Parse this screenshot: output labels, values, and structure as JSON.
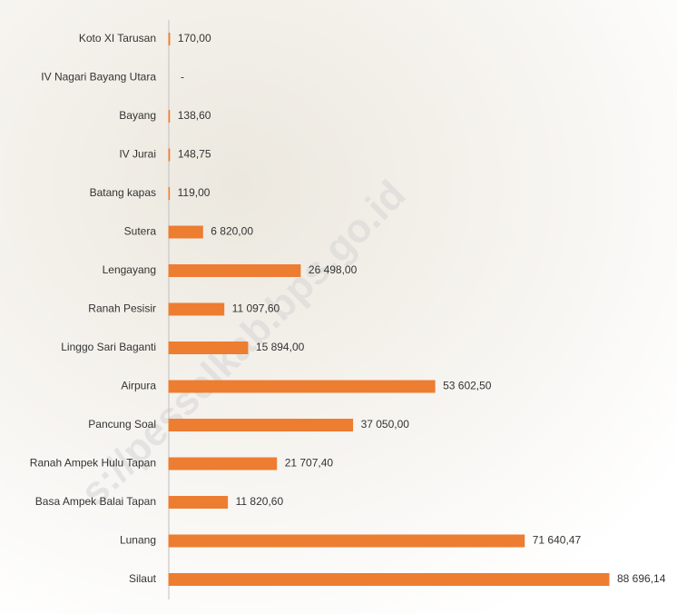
{
  "chart_data": {
    "type": "bar",
    "orientation": "horizontal",
    "color": "#ed7d31",
    "watermark": "s://pesselkab.bps.go.id",
    "categories": [
      "Koto XI Tarusan",
      "IV Nagari Bayang Utara",
      "Bayang",
      "IV Jurai",
      "Batang kapas",
      "Sutera",
      "Lengayang",
      "Ranah Pesisir",
      "Linggo Sari Baganti",
      "Airpura",
      "Pancung Soal",
      "Ranah Ampek Hulu Tapan",
      "Basa Ampek Balai Tapan",
      "Lunang",
      "Silaut"
    ],
    "values": [
      170,
      null,
      138.6,
      148.75,
      119,
      6820,
      26498,
      11097.6,
      15894,
      53602.5,
      37050,
      21707.4,
      11820.6,
      71640.47,
      88696.14
    ],
    "value_labels": [
      "170,00",
      "-",
      "138,60",
      "148,75",
      "119,00",
      "6 820,00",
      "26 498,00",
      "11 097,60",
      "15 894,00",
      "53 602,50",
      "37 050,00",
      "21 707,40",
      "11 820,60",
      "71 640,47",
      "88 696,14"
    ]
  }
}
